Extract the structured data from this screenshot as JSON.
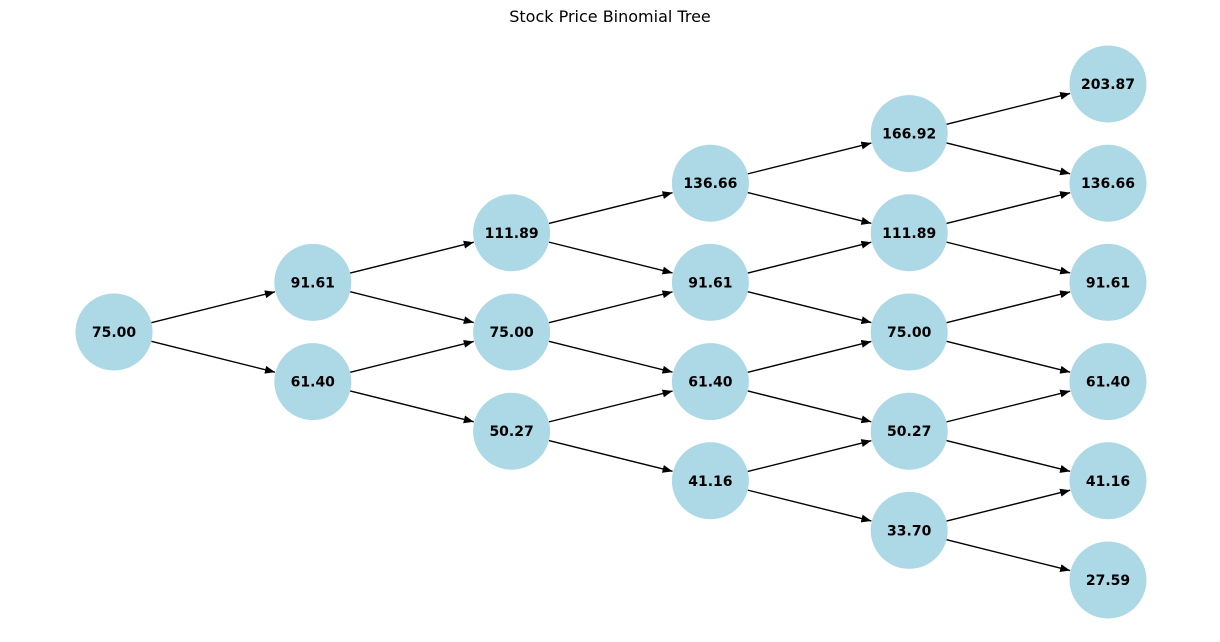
{
  "title": "Stock Price Binomial Tree",
  "colors": {
    "node_fill": "#add8e6",
    "edge": "#000000",
    "label": "#000000"
  },
  "tree": {
    "steps": 5,
    "levels": [
      [
        "75.00"
      ],
      [
        "91.61",
        "61.40"
      ],
      [
        "111.89",
        "75.00",
        "50.27"
      ],
      [
        "136.66",
        "91.61",
        "61.40",
        "41.16"
      ],
      [
        "166.92",
        "111.89",
        "75.00",
        "50.27",
        "33.70"
      ],
      [
        "203.87",
        "136.66",
        "91.61",
        "61.40",
        "41.16",
        "27.59"
      ]
    ]
  }
}
